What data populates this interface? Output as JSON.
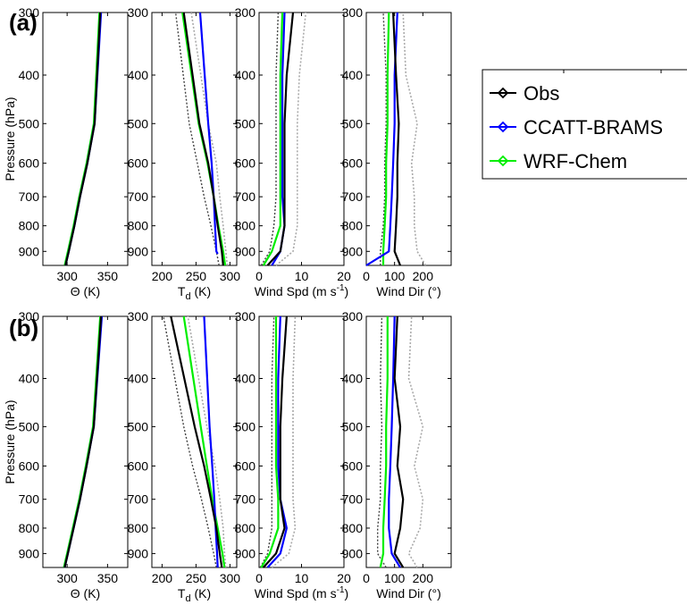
{
  "panel_labels": [
    "(a)",
    "(b)"
  ],
  "legend": {
    "entries": [
      {
        "name": "Obs",
        "color": "#000000"
      },
      {
        "name": "CCATT-BRAMS",
        "color": "#0000ff"
      },
      {
        "name": "WRF-Chem",
        "color": "#00ee00"
      }
    ]
  },
  "colors": {
    "obs": "#000000",
    "ccatt": "#0000ff",
    "wrf": "#00ee00",
    "spread": "#444444",
    "spread_light": "#aaaaaa"
  },
  "chart_data": [
    {
      "type": "line",
      "panel": "(a)",
      "variable": "theta",
      "xlabel": "Θ (K)",
      "ylabel": "Pressure (hPa)",
      "xlim": [
        270,
        375
      ],
      "xticks": [
        300,
        350
      ],
      "ylim": [
        960,
        300
      ],
      "yscale": "log",
      "yticks": [
        300,
        400,
        500,
        600,
        700,
        800,
        900
      ],
      "series": [
        {
          "name": "Obs",
          "x": [
            298,
            302,
            309,
            316,
            325,
            334,
            341
          ],
          "y": [
            960,
            900,
            800,
            700,
            600,
            500,
            300
          ]
        },
        {
          "name": "CCATT-BRAMS",
          "x": [
            298,
            302,
            309,
            316,
            325,
            334,
            342
          ],
          "y": [
            960,
            900,
            800,
            700,
            600,
            500,
            300
          ]
        },
        {
          "name": "WRF-Chem",
          "x": [
            297,
            301,
            308,
            315,
            324,
            333,
            340
          ],
          "y": [
            960,
            900,
            800,
            700,
            600,
            500,
            300
          ]
        }
      ]
    },
    {
      "type": "line",
      "panel": "(a)",
      "variable": "dewpoint",
      "xlabel": "T",
      "xlabel_sub": "d",
      "xlabel_unit": " (K)",
      "xlim": [
        185,
        310
      ],
      "xticks": [
        200,
        250,
        300
      ],
      "ylim": [
        960,
        300
      ],
      "yscale": "log",
      "yticks": [
        300,
        400,
        500,
        600,
        700,
        800,
        900
      ],
      "series": [
        {
          "name": "Obs",
          "x": [
            290,
            288,
            282,
            276,
            268,
            255,
            232
          ],
          "y": [
            960,
            900,
            800,
            700,
            600,
            500,
            300
          ]
        },
        {
          "name": "CCATT-BRAMS",
          "x": [
            282,
            280,
            278,
            276,
            273,
            268,
            256
          ],
          "y": [
            910,
            900,
            800,
            700,
            600,
            500,
            300
          ]
        },
        {
          "name": "WRF-Chem",
          "x": [
            293,
            290,
            283,
            276,
            267,
            254,
            230
          ],
          "y": [
            960,
            900,
            800,
            700,
            600,
            500,
            300
          ]
        },
        {
          "name": "Obs-low",
          "x": [
            284,
            280,
            272,
            262,
            252,
            240,
            220
          ],
          "y": [
            960,
            900,
            800,
            700,
            600,
            500,
            300
          ]
        },
        {
          "name": "Obs-high",
          "x": [
            296,
            294,
            290,
            285,
            280,
            268,
            243
          ],
          "y": [
            960,
            900,
            800,
            700,
            600,
            500,
            300
          ]
        }
      ]
    },
    {
      "type": "line",
      "panel": "(a)",
      "variable": "wind_speed",
      "xlabel": "Wind Spd (m s",
      "xlabel_sup": "-1",
      "xlabel_unit": ")",
      "xlim": [
        0,
        20
      ],
      "xticks": [
        0,
        10,
        20
      ],
      "ylim": [
        960,
        300
      ],
      "yscale": "log",
      "yticks": [
        300,
        400,
        500,
        600,
        700,
        800,
        900
      ],
      "series": [
        {
          "name": "Obs",
          "x": [
            2,
            5,
            6,
            6,
            6,
            6,
            6.5,
            8
          ],
          "y": [
            960,
            900,
            800,
            700,
            600,
            500,
            400,
            300
          ]
        },
        {
          "name": "CCATT-BRAMS",
          "x": [
            3,
            5,
            6,
            5.5,
            5.5,
            5.5,
            5.5,
            6
          ],
          "y": [
            960,
            900,
            800,
            700,
            600,
            500,
            400,
            300
          ]
        },
        {
          "name": "WRF-Chem",
          "x": [
            1,
            3,
            5,
            5,
            5,
            5,
            5,
            5.5
          ],
          "y": [
            960,
            900,
            800,
            700,
            600,
            500,
            400,
            300
          ]
        },
        {
          "name": "Obs-low",
          "x": [
            0.5,
            2.5,
            3.5,
            4,
            4,
            4,
            4,
            4.5
          ],
          "y": [
            960,
            900,
            800,
            700,
            600,
            500,
            400,
            300
          ]
        },
        {
          "name": "Obs-high",
          "x": [
            4,
            8,
            9,
            9,
            9,
            9,
            9.5,
            11
          ],
          "y": [
            960,
            900,
            800,
            700,
            600,
            500,
            400,
            300
          ]
        }
      ]
    },
    {
      "type": "line",
      "panel": "(a)",
      "variable": "wind_dir",
      "xlabel": "Wind Dir (°)",
      "xlim": [
        0,
        300
      ],
      "xticks": [
        0,
        100,
        200
      ],
      "ylim": [
        960,
        300
      ],
      "yscale": "log",
      "yticks": [
        300,
        400,
        500,
        600,
        700,
        800,
        900
      ],
      "series": [
        {
          "name": "Obs",
          "x": [
            120,
            100,
            105,
            110,
            110,
            115,
            105,
            95
          ],
          "y": [
            960,
            900,
            800,
            700,
            600,
            500,
            400,
            300
          ]
        },
        {
          "name": "CCATT-BRAMS",
          "x": [
            0,
            80,
            85,
            90,
            95,
            100,
            100,
            110
          ],
          "y": [
            960,
            900,
            800,
            700,
            600,
            500,
            400,
            300
          ]
        },
        {
          "name": "WRF-Chem",
          "x": [
            60,
            60,
            65,
            70,
            70,
            75,
            75,
            80
          ],
          "y": [
            960,
            900,
            800,
            700,
            600,
            500,
            400,
            300
          ]
        },
        {
          "name": "Obs-low",
          "x": [
            50,
            50,
            60,
            65,
            65,
            70,
            70,
            60
          ],
          "y": [
            960,
            900,
            800,
            700,
            600,
            500,
            400,
            300
          ]
        },
        {
          "name": "Obs-high",
          "x": [
            210,
            180,
            170,
            170,
            160,
            180,
            140,
            130
          ],
          "y": [
            960,
            900,
            800,
            700,
            600,
            500,
            400,
            300
          ]
        }
      ]
    },
    {
      "type": "line",
      "panel": "(b)",
      "variable": "theta",
      "xlabel": "Θ (K)",
      "ylabel": "Pressure (hPa)",
      "xlim": [
        270,
        375
      ],
      "xticks": [
        300,
        350
      ],
      "ylim": [
        960,
        300
      ],
      "yscale": "log",
      "yticks": [
        300,
        400,
        500,
        600,
        700,
        800,
        900
      ],
      "series": [
        {
          "name": "Obs",
          "x": [
            297,
            301,
            308,
            316,
            324,
            333,
            342
          ],
          "y": [
            960,
            900,
            800,
            700,
            600,
            500,
            300
          ]
        },
        {
          "name": "CCATT-BRAMS",
          "x": [
            297,
            301,
            308,
            316,
            324,
            333,
            343
          ],
          "y": [
            960,
            900,
            800,
            700,
            600,
            500,
            300
          ]
        },
        {
          "name": "WRF-Chem",
          "x": [
            296,
            300,
            307,
            315,
            323,
            332,
            341
          ],
          "y": [
            960,
            900,
            800,
            700,
            600,
            500,
            300
          ]
        }
      ]
    },
    {
      "type": "line",
      "panel": "(b)",
      "variable": "dewpoint",
      "xlabel": "T",
      "xlabel_sub": "d",
      "xlabel_unit": " (K)",
      "xlim": [
        185,
        310
      ],
      "xticks": [
        200,
        250,
        300
      ],
      "ylim": [
        960,
        300
      ],
      "yscale": "log",
      "yticks": [
        300,
        400,
        500,
        600,
        700,
        800,
        900
      ],
      "series": [
        {
          "name": "Obs",
          "x": [
            288,
            285,
            280,
            272,
            262,
            248,
            213
          ],
          "y": [
            960,
            900,
            800,
            700,
            600,
            500,
            300
          ]
        },
        {
          "name": "CCATT-BRAMS",
          "x": [
            282,
            281,
            279,
            277,
            274,
            270,
            262
          ],
          "y": [
            960,
            900,
            800,
            700,
            600,
            500,
            300
          ]
        },
        {
          "name": "WRF-Chem",
          "x": [
            292,
            289,
            282,
            274,
            266,
            257,
            232
          ],
          "y": [
            960,
            900,
            800,
            700,
            600,
            500,
            300
          ]
        },
        {
          "name": "Obs-low",
          "x": [
            280,
            276,
            268,
            258,
            245,
            232,
            202
          ],
          "y": [
            960,
            900,
            800,
            700,
            600,
            500,
            300
          ]
        },
        {
          "name": "Obs-high",
          "x": [
            294,
            292,
            290,
            285,
            278,
            266,
            238
          ],
          "y": [
            960,
            900,
            800,
            700,
            600,
            500,
            300
          ]
        }
      ]
    },
    {
      "type": "line",
      "panel": "(b)",
      "variable": "wind_speed",
      "xlabel": "Wind Spd (m s",
      "xlabel_sup": "-1",
      "xlabel_unit": ")",
      "xlim": [
        0,
        20
      ],
      "xticks": [
        0,
        10,
        20
      ],
      "ylim": [
        960,
        300
      ],
      "yscale": "log",
      "yticks": [
        300,
        400,
        500,
        600,
        700,
        800,
        900
      ],
      "series": [
        {
          "name": "Obs",
          "x": [
            1,
            4,
            6,
            5,
            5,
            5,
            5.5,
            6.5
          ],
          "y": [
            960,
            900,
            800,
            700,
            600,
            500,
            400,
            300
          ]
        },
        {
          "name": "CCATT-BRAMS",
          "x": [
            2,
            5,
            6.5,
            5,
            4.5,
            4.5,
            4.5,
            5
          ],
          "y": [
            960,
            900,
            800,
            700,
            600,
            500,
            400,
            300
          ]
        },
        {
          "name": "WRF-Chem",
          "x": [
            0.5,
            2.5,
            4.5,
            4.5,
            4,
            4,
            4,
            4
          ],
          "y": [
            960,
            900,
            800,
            700,
            600,
            500,
            400,
            300
          ]
        },
        {
          "name": "Obs-low",
          "x": [
            0.3,
            2,
            3,
            3,
            3,
            3,
            3,
            3.5
          ],
          "y": [
            960,
            900,
            800,
            700,
            600,
            500,
            400,
            300
          ]
        },
        {
          "name": "Obs-high",
          "x": [
            3,
            7,
            8.5,
            8,
            8,
            8,
            8,
            8.5
          ],
          "y": [
            960,
            900,
            800,
            700,
            600,
            500,
            400,
            300
          ]
        }
      ]
    },
    {
      "type": "line",
      "panel": "(b)",
      "variable": "wind_dir",
      "xlabel": "Wind Dir (°)",
      "xlim": [
        0,
        300
      ],
      "xticks": [
        0,
        100,
        200
      ],
      "ylim": [
        960,
        300
      ],
      "yscale": "log",
      "yticks": [
        300,
        400,
        500,
        600,
        700,
        800,
        900
      ],
      "series": [
        {
          "name": "Obs",
          "x": [
            130,
            100,
            120,
            130,
            110,
            120,
            100,
            110
          ],
          "y": [
            960,
            900,
            800,
            700,
            600,
            500,
            400,
            300
          ]
        },
        {
          "name": "CCATT-BRAMS",
          "x": [
            120,
            90,
            80,
            80,
            85,
            90,
            95,
            100
          ],
          "y": [
            960,
            900,
            800,
            700,
            600,
            500,
            400,
            300
          ]
        },
        {
          "name": "WRF-Chem",
          "x": [
            50,
            60,
            60,
            65,
            70,
            70,
            75,
            75
          ],
          "y": [
            960,
            900,
            800,
            700,
            600,
            500,
            400,
            300
          ]
        },
        {
          "name": "Obs-low",
          "x": [
            70,
            40,
            40,
            50,
            50,
            55,
            50,
            55
          ],
          "y": [
            960,
            900,
            800,
            700,
            600,
            500,
            400,
            300
          ]
        },
        {
          "name": "Obs-high",
          "x": [
            180,
            150,
            190,
            200,
            170,
            200,
            150,
            160
          ],
          "y": [
            960,
            900,
            800,
            700,
            600,
            500,
            400,
            300
          ]
        }
      ]
    }
  ]
}
